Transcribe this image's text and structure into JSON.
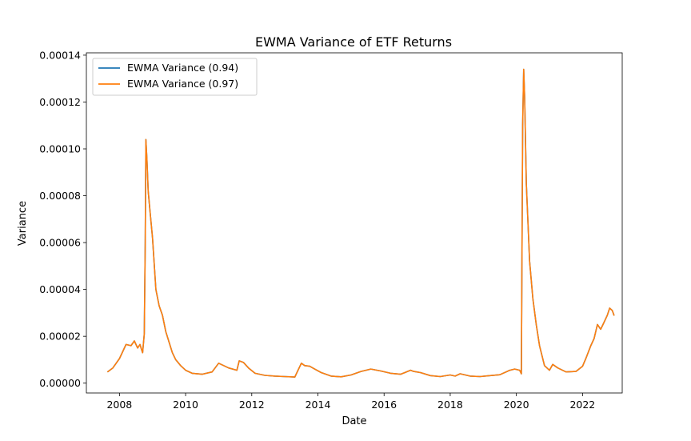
{
  "chart_data": {
    "type": "line",
    "title": "EWMA Variance of ETF Returns",
    "xlabel": "Date",
    "ylabel": "Variance",
    "xlim": [
      2007.0,
      2023.2
    ],
    "ylim": [
      -4.2e-06,
      0.000141
    ],
    "x_ticks": [
      2008,
      2010,
      2012,
      2014,
      2016,
      2018,
      2020,
      2022
    ],
    "x_tick_labels": [
      "2008",
      "2010",
      "2012",
      "2014",
      "2016",
      "2018",
      "2020",
      "2022"
    ],
    "y_ticks": [
      0,
      2e-05,
      4e-05,
      6e-05,
      8e-05,
      0.0001,
      0.00012,
      0.00014
    ],
    "y_tick_labels": [
      "0.00000",
      "0.00002",
      "0.00004",
      "0.00006",
      "0.00008",
      "0.00010",
      "0.00012",
      "0.00014"
    ],
    "grid": false,
    "legend_position": "top-left",
    "series": [
      {
        "name": "EWMA Variance (0.94)",
        "color": "#1f77b4",
        "x": [
          2007.65,
          2007.8,
          2008.0,
          2008.2,
          2008.35,
          2008.45,
          2008.55,
          2008.62,
          2008.7,
          2008.75,
          2008.78,
          2008.8,
          2008.83,
          2008.87,
          2008.92,
          2009.0,
          2009.1,
          2009.2,
          2009.3,
          2009.4,
          2009.5,
          2009.6,
          2009.7,
          2009.85,
          2010.0,
          2010.2,
          2010.5,
          2010.8,
          2011.0,
          2011.3,
          2011.55,
          2011.62,
          2011.75,
          2011.9,
          2012.1,
          2012.4,
          2012.7,
          2013.0,
          2013.3,
          2013.5,
          2013.6,
          2013.75,
          2013.9,
          2014.1,
          2014.4,
          2014.7,
          2015.0,
          2015.3,
          2015.6,
          2015.9,
          2016.2,
          2016.5,
          2016.8,
          2016.9,
          2017.1,
          2017.4,
          2017.7,
          2018.0,
          2018.15,
          2018.3,
          2018.6,
          2018.9,
          2019.2,
          2019.5,
          2019.8,
          2019.95,
          2020.1,
          2020.15,
          2020.19,
          2020.22,
          2020.25,
          2020.3,
          2020.4,
          2020.5,
          2020.6,
          2020.7,
          2020.85,
          2021.0,
          2021.1,
          2021.25,
          2021.5,
          2021.8,
          2022.0,
          2022.1,
          2022.25,
          2022.35,
          2022.45,
          2022.55,
          2022.65,
          2022.75,
          2022.82,
          2022.9,
          2022.95
        ],
        "values": [
          4.9e-06,
          6.5e-06,
          1.05e-05,
          1.65e-05,
          1.6e-05,
          1.8e-05,
          1.5e-05,
          1.65e-05,
          1.3e-05,
          2.1e-05,
          6e-05,
          0.000104,
          9.55e-05,
          8.2e-05,
          7.4e-05,
          6.2e-05,
          4e-05,
          3.3e-05,
          2.9e-05,
          2.2e-05,
          1.75e-05,
          1.3e-05,
          1e-05,
          7.5e-06,
          5.5e-06,
          4.2e-06,
          3.8e-06,
          4.8e-06,
          8.5e-06,
          6.5e-06,
          5.5e-06,
          9.5e-06,
          8.8e-06,
          6.5e-06,
          4.2e-06,
          3.3e-06,
          3e-06,
          2.8e-06,
          2.6e-06,
          8.5e-06,
          7.5e-06,
          7.2e-06,
          6e-06,
          4.5e-06,
          3e-06,
          2.7e-06,
          3.5e-06,
          5e-06,
          6e-06,
          5.2e-06,
          4.2e-06,
          3.8e-06,
          5.5e-06,
          5e-06,
          4.5e-06,
          3.2e-06,
          2.8e-06,
          3.5e-06,
          3e-06,
          4e-06,
          3e-06,
          2.8e-06,
          3.2e-06,
          3.6e-06,
          5.5e-06,
          6e-06,
          5.5e-06,
          4e-06,
          0.00011,
          0.000134,
          0.000122,
          8.5e-05,
          5.2e-05,
          3.6e-05,
          2.5e-05,
          1.6e-05,
          7.5e-06,
          5.5e-06,
          8e-06,
          6.5e-06,
          4.8e-06,
          5e-06,
          7.2e-06,
          1.05e-05,
          1.6e-05,
          1.9e-05,
          2.5e-05,
          2.3e-05,
          2.6e-05,
          2.9e-05,
          3.2e-05,
          3.1e-05,
          2.9e-05
        ]
      },
      {
        "name": "EWMA Variance (0.97)",
        "color": "#ff7f0e",
        "x": [
          2007.65,
          2007.8,
          2008.0,
          2008.2,
          2008.35,
          2008.45,
          2008.55,
          2008.62,
          2008.7,
          2008.75,
          2008.78,
          2008.8,
          2008.83,
          2008.87,
          2008.92,
          2009.0,
          2009.1,
          2009.2,
          2009.3,
          2009.4,
          2009.5,
          2009.6,
          2009.7,
          2009.85,
          2010.0,
          2010.2,
          2010.5,
          2010.8,
          2011.0,
          2011.3,
          2011.55,
          2011.62,
          2011.75,
          2011.9,
          2012.1,
          2012.4,
          2012.7,
          2013.0,
          2013.3,
          2013.5,
          2013.6,
          2013.75,
          2013.9,
          2014.1,
          2014.4,
          2014.7,
          2015.0,
          2015.3,
          2015.6,
          2015.9,
          2016.2,
          2016.5,
          2016.8,
          2016.9,
          2017.1,
          2017.4,
          2017.7,
          2018.0,
          2018.15,
          2018.3,
          2018.6,
          2018.9,
          2019.2,
          2019.5,
          2019.8,
          2019.95,
          2020.1,
          2020.15,
          2020.19,
          2020.22,
          2020.25,
          2020.3,
          2020.4,
          2020.5,
          2020.6,
          2020.7,
          2020.85,
          2021.0,
          2021.1,
          2021.25,
          2021.5,
          2021.8,
          2022.0,
          2022.1,
          2022.25,
          2022.35,
          2022.45,
          2022.55,
          2022.65,
          2022.75,
          2022.82,
          2022.9,
          2022.95
        ],
        "values": [
          4.9e-06,
          6.5e-06,
          1.05e-05,
          1.65e-05,
          1.6e-05,
          1.8e-05,
          1.5e-05,
          1.65e-05,
          1.3e-05,
          2.1e-05,
          6e-05,
          0.000104,
          9.55e-05,
          8.2e-05,
          7.4e-05,
          6.2e-05,
          4e-05,
          3.3e-05,
          2.9e-05,
          2.2e-05,
          1.75e-05,
          1.3e-05,
          1e-05,
          7.5e-06,
          5.5e-06,
          4.2e-06,
          3.8e-06,
          4.8e-06,
          8.5e-06,
          6.5e-06,
          5.5e-06,
          9.5e-06,
          8.8e-06,
          6.5e-06,
          4.2e-06,
          3.3e-06,
          3e-06,
          2.8e-06,
          2.6e-06,
          8.5e-06,
          7.5e-06,
          7.2e-06,
          6e-06,
          4.5e-06,
          3e-06,
          2.7e-06,
          3.5e-06,
          5e-06,
          6e-06,
          5.2e-06,
          4.2e-06,
          3.8e-06,
          5.5e-06,
          5e-06,
          4.5e-06,
          3.2e-06,
          2.8e-06,
          3.5e-06,
          3e-06,
          4e-06,
          3e-06,
          2.8e-06,
          3.2e-06,
          3.6e-06,
          5.5e-06,
          6e-06,
          5.5e-06,
          4e-06,
          0.00011,
          0.000134,
          0.000122,
          8.5e-05,
          5.2e-05,
          3.6e-05,
          2.5e-05,
          1.6e-05,
          7.5e-06,
          5.5e-06,
          8e-06,
          6.5e-06,
          4.8e-06,
          5e-06,
          7.2e-06,
          1.05e-05,
          1.6e-05,
          1.9e-05,
          2.5e-05,
          2.3e-05,
          2.6e-05,
          2.9e-05,
          3.2e-05,
          3.1e-05,
          2.9e-05
        ]
      }
    ]
  }
}
